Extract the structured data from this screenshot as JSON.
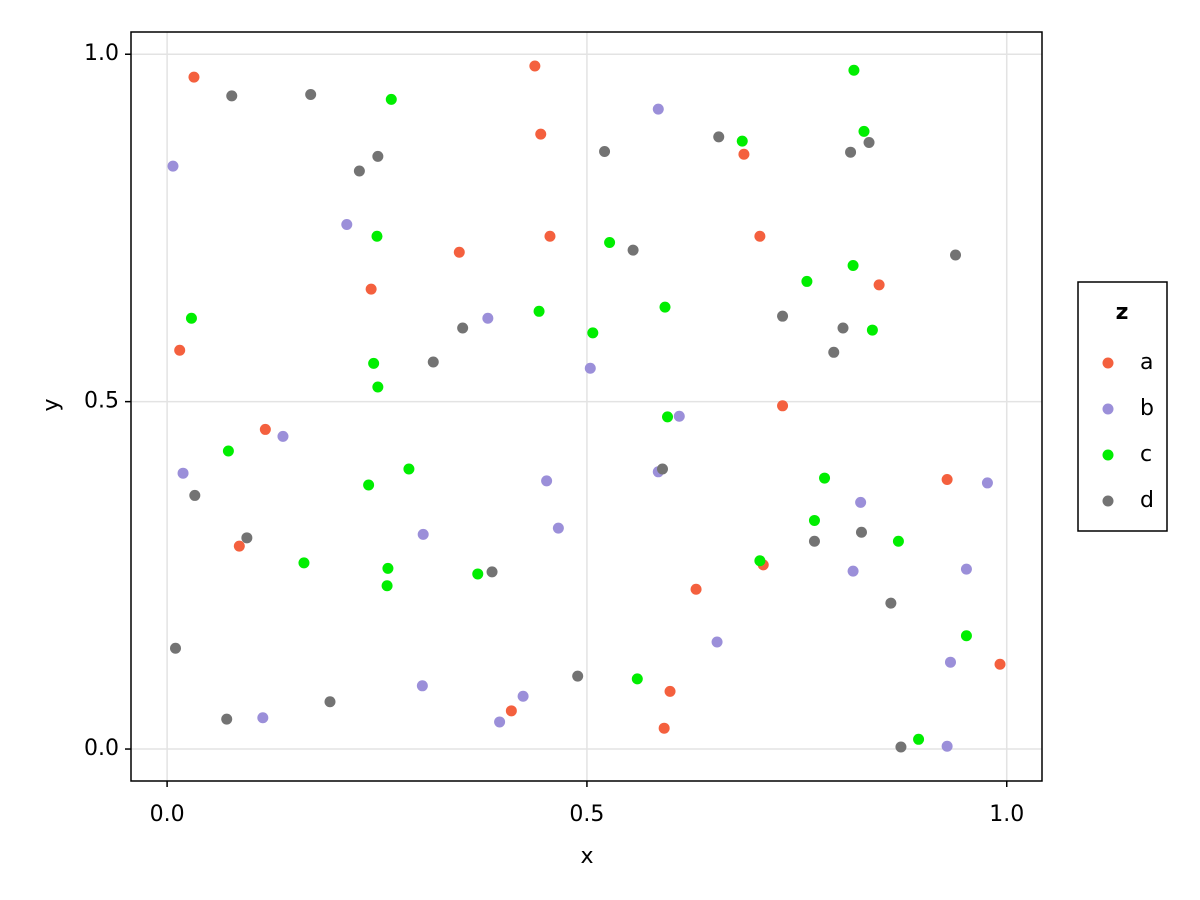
{
  "chart_data": {
    "type": "scatter",
    "xlabel": "x",
    "ylabel": "y",
    "legend_title": "z",
    "xlim": [
      -0.043,
      1.042
    ],
    "ylim": [
      -0.046,
      1.032
    ],
    "xticks": [
      {
        "value": 0,
        "label": "0.0"
      },
      0.5,
      {
        "value": 1,
        "label": "1.0"
      }
    ],
    "yticks": [
      {
        "value": 0,
        "label": "0.0"
      },
      0.5,
      {
        "value": 1,
        "label": "1.0"
      }
    ],
    "grid": true,
    "legend": "right",
    "series": [
      {
        "name": "a",
        "color": "#f4603e",
        "x": [
          0.032,
          0.438,
          0.445,
          0.687,
          0.456,
          0.706,
          0.348,
          0.243,
          0.848,
          0.015,
          0.733,
          0.117,
          0.929,
          0.086,
          0.71,
          0.63,
          0.992,
          0.599,
          0.41,
          0.592
        ],
        "values": [
          0.967,
          0.983,
          0.885,
          0.856,
          0.738,
          0.738,
          0.715,
          0.662,
          0.668,
          0.574,
          0.494,
          0.46,
          0.388,
          0.292,
          0.265,
          0.23,
          0.122,
          0.083,
          0.055,
          0.03
        ]
      },
      {
        "name": "b",
        "color": "#9b8fd9",
        "x": [
          0.007,
          0.585,
          0.214,
          0.382,
          0.504,
          0.61,
          0.138,
          0.019,
          0.452,
          0.585,
          0.466,
          0.305,
          0.826,
          0.977,
          0.952,
          0.817,
          0.655,
          0.933,
          0.304,
          0.424,
          0.114,
          0.396,
          0.929
        ],
        "values": [
          0.839,
          0.921,
          0.755,
          0.62,
          0.548,
          0.479,
          0.45,
          0.397,
          0.386,
          0.399,
          0.318,
          0.309,
          0.355,
          0.383,
          0.259,
          0.256,
          0.154,
          0.125,
          0.091,
          0.076,
          0.045,
          0.039,
          0.004
        ]
      },
      {
        "name": "c",
        "color": "#00ee00",
        "x": [
          0.267,
          0.818,
          0.83,
          0.685,
          0.25,
          0.527,
          0.817,
          0.762,
          0.029,
          0.443,
          0.593,
          0.507,
          0.84,
          0.246,
          0.251,
          0.596,
          0.073,
          0.288,
          0.24,
          0.783,
          0.771,
          0.871,
          0.163,
          0.706,
          0.263,
          0.37,
          0.262,
          0.952,
          0.56,
          0.895
        ],
        "values": [
          0.935,
          0.977,
          0.889,
          0.875,
          0.738,
          0.729,
          0.696,
          0.673,
          0.62,
          0.63,
          0.636,
          0.599,
          0.603,
          0.555,
          0.521,
          0.478,
          0.429,
          0.403,
          0.38,
          0.39,
          0.329,
          0.299,
          0.268,
          0.271,
          0.26,
          0.252,
          0.235,
          0.163,
          0.101,
          0.014
        ]
      },
      {
        "name": "d",
        "color": "#737373",
        "x": [
          0.077,
          0.171,
          0.229,
          0.251,
          0.521,
          0.657,
          0.814,
          0.836,
          0.555,
          0.939,
          0.352,
          0.733,
          0.805,
          0.794,
          0.317,
          0.59,
          0.033,
          0.095,
          0.771,
          0.827,
          0.387,
          0.862,
          0.01,
          0.489,
          0.194,
          0.071,
          0.874
        ],
        "values": [
          0.94,
          0.942,
          0.832,
          0.853,
          0.86,
          0.881,
          0.859,
          0.873,
          0.718,
          0.711,
          0.606,
          0.623,
          0.606,
          0.571,
          0.557,
          0.403,
          0.365,
          0.304,
          0.299,
          0.312,
          0.255,
          0.21,
          0.145,
          0.105,
          0.068,
          0.043,
          0.003
        ]
      }
    ]
  }
}
